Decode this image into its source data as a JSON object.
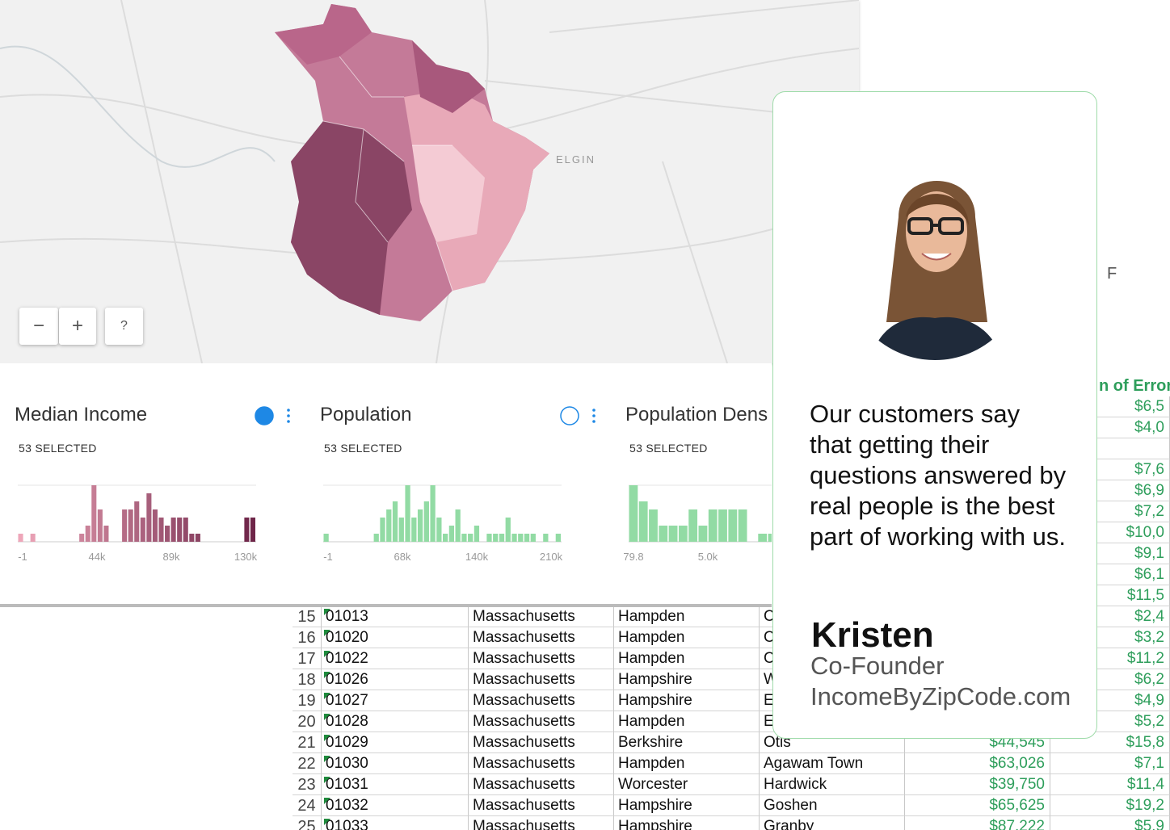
{
  "map": {
    "place_labels": [
      "ELGIN"
    ],
    "controls": [
      "−",
      "+",
      "?"
    ]
  },
  "widgets": [
    {
      "title": "Median Income",
      "selected": "53 SELECTED",
      "axis_labels": [
        "-1",
        "44k",
        "89k",
        "130k"
      ],
      "colors": [
        "#eea6b9",
        "#6e2548"
      ],
      "bars": [
        1,
        0,
        1,
        0,
        0,
        0,
        0,
        0,
        0,
        0,
        1,
        2,
        7,
        4,
        2,
        0,
        0,
        4,
        4,
        5,
        3,
        6,
        4,
        3,
        2,
        3,
        3,
        3,
        1,
        1,
        0,
        0,
        0,
        0,
        0,
        0,
        0,
        3,
        3
      ]
    },
    {
      "title": "Population",
      "selected": "53 SELECTED",
      "axis_labels": [
        "-1",
        "68k",
        "140k",
        "210k"
      ],
      "colors": [
        "#92dba4",
        "#92dba4"
      ],
      "bars": [
        1,
        0,
        0,
        0,
        0,
        0,
        0,
        0,
        1,
        3,
        4,
        5,
        3,
        7,
        3,
        4,
        5,
        7,
        3,
        1,
        2,
        4,
        1,
        1,
        2,
        0,
        1,
        1,
        1,
        3,
        1,
        1,
        1,
        1,
        0,
        1,
        0,
        1
      ]
    },
    {
      "title": "Population Dens",
      "selected": "53 SELECTED",
      "axis_labels": [
        "79.8",
        "5.0k"
      ],
      "colors": [
        "#92dba4",
        "#92dba4"
      ],
      "bars": [
        7,
        5,
        4,
        2,
        2,
        2,
        4,
        2,
        4,
        4,
        4,
        4,
        0,
        1,
        1,
        0,
        0,
        0,
        0,
        0,
        0,
        0,
        0,
        0
      ]
    }
  ],
  "spreadsheet": {
    "column_header": "F",
    "header_partial": "n of Error",
    "upper_margins": [
      "$6,5",
      "$4,0",
      "",
      "$7,6",
      "$6,9",
      "$7,2",
      "$10,0",
      "$9,1",
      "$6,1",
      "$11,5"
    ],
    "rows": [
      [
        "15",
        "01013",
        "Massachusetts",
        "Hampden",
        "C",
        "",
        "$2,4"
      ],
      [
        "16",
        "01020",
        "Massachusetts",
        "Hampden",
        "C",
        "",
        "$3,2"
      ],
      [
        "17",
        "01022",
        "Massachusetts",
        "Hampden",
        "C",
        "",
        "$11,2"
      ],
      [
        "18",
        "01026",
        "Massachusetts",
        "Hampshire",
        "W",
        "",
        "$6,2"
      ],
      [
        "19",
        "01027",
        "Massachusetts",
        "Hampshire",
        "E",
        "",
        "$4,9"
      ],
      [
        "20",
        "01028",
        "Massachusetts",
        "Hampden",
        "E",
        "",
        "$5,2"
      ],
      [
        "21",
        "01029",
        "Massachusetts",
        "Berkshire",
        "Otis",
        "$44,545",
        "$15,8"
      ],
      [
        "22",
        "01030",
        "Massachusetts",
        "Hampden",
        "Agawam Town",
        "$63,026",
        "$7,1"
      ],
      [
        "23",
        "01031",
        "Massachusetts",
        "Worcester",
        "Hardwick",
        "$39,750",
        "$11,4"
      ],
      [
        "24",
        "01032",
        "Massachusetts",
        "Hampshire",
        "Goshen",
        "$65,625",
        "$19,2"
      ],
      [
        "25",
        "01033",
        "Massachusetts",
        "Hampshire",
        "Granby",
        "$87,222",
        "$5,9"
      ]
    ]
  },
  "testimonial": {
    "quote": "Our customers say that getting their questions answered by real people is the best part of working with us.",
    "name": "Kristen",
    "role": "Co-Founder",
    "site": "IncomeByZipCode.com"
  }
}
